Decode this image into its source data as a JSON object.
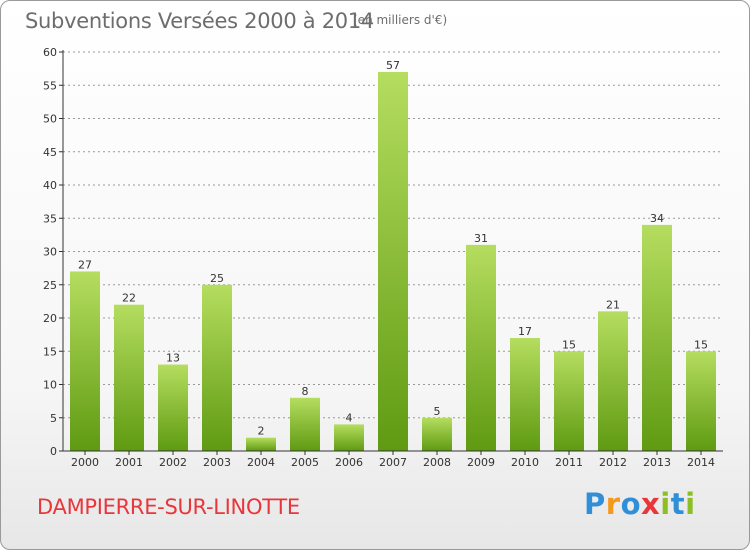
{
  "header": {
    "title": "Subventions Versées 2000 à 2014",
    "unit": "(en milliers d'€)"
  },
  "footer": {
    "commune": "DAMPIERRE-SUR-LINOTTE",
    "logo": {
      "text": "Proxiti",
      "letters": [
        {
          "ch": "P",
          "color": "#2f8fd8"
        },
        {
          "ch": "r",
          "color": "#f39a1a"
        },
        {
          "ch": "o",
          "color": "#2f8fd8"
        },
        {
          "ch": "x",
          "color": "#e8363b"
        },
        {
          "ch": "i",
          "color": "#8cbf26"
        },
        {
          "ch": "t",
          "color": "#2f8fd8"
        },
        {
          "ch": "i",
          "color": "#8cbf26"
        }
      ]
    }
  },
  "colors": {
    "bar_light": "#b5dd5f",
    "bar_dark": "#5f9a12",
    "axis": "#333333",
    "grid": "#9a9a9a",
    "title": "#6d6d6d",
    "commune": "#e8363b"
  },
  "chart_data": {
    "type": "bar",
    "categories": [
      "2000",
      "2001",
      "2002",
      "2003",
      "2004",
      "2005",
      "2006",
      "2007",
      "2008",
      "2009",
      "2010",
      "2011",
      "2012",
      "2013",
      "2014"
    ],
    "values": [
      27,
      22,
      13,
      25,
      2,
      8,
      4,
      57,
      5,
      31,
      17,
      15,
      21,
      34,
      15
    ],
    "yticks": [
      0,
      5,
      10,
      15,
      20,
      25,
      30,
      35,
      40,
      45,
      50,
      55,
      60
    ],
    "ylim": [
      0,
      60
    ],
    "title": "Subventions Versées 2000 à 2014",
    "xlabel": "",
    "ylabel": "",
    "grid": "horizontal dashed",
    "legend": "none"
  }
}
